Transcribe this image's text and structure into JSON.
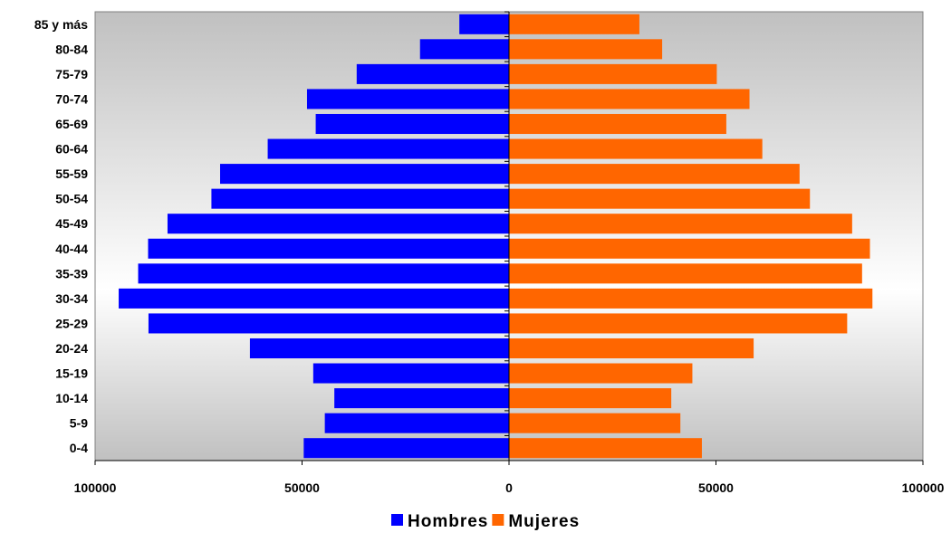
{
  "chart_data": {
    "type": "bar",
    "orientation": "horizontal",
    "layout": "population-pyramid",
    "categories": [
      "85 y más",
      "80-84",
      "75-79",
      "70-74",
      "65-69",
      "60-64",
      "55-59",
      "50-54",
      "45-49",
      "40-44",
      "35-39",
      "30-34",
      "25-29",
      "20-24",
      "15-19",
      "10-14",
      "5-9",
      "0-4"
    ],
    "series": [
      {
        "name": "Hombres",
        "color": "#0000ff",
        "side": "left",
        "values": [
          12000,
          21500,
          36800,
          48800,
          46700,
          58300,
          69800,
          71900,
          82500,
          87200,
          89600,
          94300,
          87100,
          62600,
          47300,
          42200,
          44500,
          49600
        ]
      },
      {
        "name": "Mujeres",
        "color": "#ff6600",
        "side": "right",
        "values": [
          31500,
          37000,
          50200,
          58100,
          52500,
          61200,
          70200,
          72700,
          82900,
          87200,
          85300,
          87800,
          81700,
          59100,
          44300,
          39200,
          41400,
          46600
        ]
      }
    ],
    "xlim": [
      -100000,
      100000
    ],
    "x_ticks": [
      {
        "value": -100000,
        "label": "100000"
      },
      {
        "value": -50000,
        "label": "50000"
      },
      {
        "value": 0,
        "label": "0"
      },
      {
        "value": 50000,
        "label": "50000"
      },
      {
        "value": 100000,
        "label": "100000"
      }
    ],
    "legend": {
      "position": "bottom",
      "entries": [
        "Hombres",
        "Mujeres"
      ]
    },
    "background": {
      "gradient": [
        "#c0c0c0",
        "#ffffff",
        "#c0c0c0"
      ]
    },
    "grid": false
  }
}
